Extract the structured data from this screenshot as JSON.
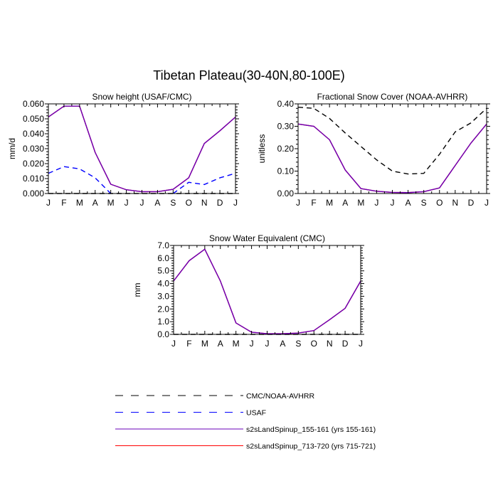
{
  "figure": {
    "title": "Tibetan Plateau(30-40N,80-100E)"
  },
  "legend": {
    "placement": "bottom-center",
    "entries": [
      {
        "label": "CMC/NOAA-AVHRR",
        "color": "#000000",
        "dash": "dashed"
      },
      {
        "label": "USAF",
        "color": "#0000ff",
        "dash": "dashed"
      },
      {
        "label": "s2sLandSpinup_155-161 (yrs 155-161)",
        "color": "#6a00b8",
        "dash": "solid"
      },
      {
        "label": "s2sLandSpinup_713-720 (yrs 715-721)",
        "color": "#ff0000",
        "dash": "solid"
      }
    ]
  },
  "chart_data": [
    {
      "id": "snow-height",
      "type": "line",
      "title": "Snow height (USAF/CMC)",
      "ylabel": "mm/d",
      "xlabel": "",
      "categories": [
        "J",
        "F",
        "M",
        "A",
        "M",
        "J",
        "J",
        "A",
        "S",
        "O",
        "N",
        "D",
        "J"
      ],
      "ylim": [
        0,
        0.06
      ],
      "yticks": [
        "0.000",
        "0.010",
        "0.020",
        "0.030",
        "0.040",
        "0.050",
        "0.060"
      ],
      "grid": false,
      "series": [
        {
          "name": "CMC/NOAA-AVHRR",
          "color": "#000000",
          "dash": "dashed",
          "values": [
            0.0,
            0.0,
            0.0,
            0.0,
            0.0,
            0.0,
            0.0,
            0.0,
            0.0,
            0.0,
            0.0,
            0.0,
            0.0
          ]
        },
        {
          "name": "USAF",
          "color": "#0000ff",
          "dash": "dashed",
          "values": [
            0.0135,
            0.018,
            0.0165,
            0.0105,
            0.0,
            null,
            null,
            null,
            0.0,
            0.0075,
            0.006,
            0.0105,
            0.0135
          ]
        },
        {
          "name": "s2sLandSpinup_713-720 (yrs 715-721)",
          "color": "#ff0000",
          "dash": "solid",
          "values": [
            0.0512,
            0.0585,
            0.0585,
            0.0275,
            0.0062,
            0.0025,
            0.0012,
            0.0012,
            0.0028,
            0.0105,
            0.0335,
            0.042,
            0.0512
          ]
        },
        {
          "name": "s2sLandSpinup_155-161 (yrs 155-161)",
          "color": "#6a00b8",
          "dash": "solid",
          "values": [
            0.0512,
            0.0585,
            0.0585,
            0.0275,
            0.0062,
            0.0025,
            0.0012,
            0.0012,
            0.0028,
            0.0105,
            0.0335,
            0.042,
            0.0512
          ]
        }
      ]
    },
    {
      "id": "fractional-snow-cover",
      "type": "line",
      "title": "Fractional Snow Cover (NOAA-AVHRR)",
      "ylabel": "unitless",
      "xlabel": "",
      "categories": [
        "J",
        "F",
        "M",
        "A",
        "M",
        "J",
        "J",
        "A",
        "S",
        "O",
        "N",
        "D",
        "J"
      ],
      "ylim": [
        0,
        0.4
      ],
      "yticks": [
        "0.00",
        "0.10",
        "0.20",
        "0.30",
        "0.40"
      ],
      "grid": false,
      "series": [
        {
          "name": "CMC/NOAA-AVHRR",
          "color": "#000000",
          "dash": "dashed",
          "values": [
            0.385,
            0.38,
            0.335,
            0.27,
            0.21,
            0.15,
            0.1,
            0.087,
            0.09,
            0.175,
            0.275,
            0.315,
            0.38
          ]
        },
        {
          "name": "s2sLandSpinup_713-720 (yrs 715-721)",
          "color": "#ff0000",
          "dash": "solid",
          "values": [
            0.31,
            0.3,
            0.24,
            0.105,
            0.022,
            0.01,
            0.005,
            0.004,
            0.008,
            0.025,
            0.125,
            0.225,
            0.31
          ]
        },
        {
          "name": "s2sLandSpinup_155-161 (yrs 155-161)",
          "color": "#6a00b8",
          "dash": "solid",
          "values": [
            0.31,
            0.3,
            0.24,
            0.105,
            0.022,
            0.01,
            0.005,
            0.004,
            0.008,
            0.025,
            0.125,
            0.225,
            0.31
          ]
        }
      ]
    },
    {
      "id": "snow-water-equivalent",
      "type": "line",
      "title": "Snow Water Equivalent (CMC)",
      "ylabel": "mm",
      "xlabel": "",
      "categories": [
        "J",
        "F",
        "M",
        "A",
        "M",
        "J",
        "J",
        "A",
        "S",
        "O",
        "N",
        "D",
        "J"
      ],
      "ylim": [
        0,
        7
      ],
      "yticks": [
        "0.0",
        "1.0",
        "2.0",
        "3.0",
        "4.0",
        "5.0",
        "6.0",
        "7.0"
      ],
      "grid": false,
      "series": [
        {
          "name": "CMC/NOAA-AVHRR",
          "color": "#000000",
          "dash": "dashed",
          "values": [
            0.0,
            0.0,
            0.0,
            0.0,
            0.0,
            0.0,
            0.0,
            0.0,
            0.0,
            0.0,
            0.0,
            0.0,
            0.0
          ]
        },
        {
          "name": "s2sLandSpinup_713-720 (yrs 715-721)",
          "color": "#ff0000",
          "dash": "solid",
          "values": [
            4.2,
            5.8,
            6.7,
            4.2,
            0.9,
            0.17,
            0.05,
            0.05,
            0.1,
            0.3,
            1.15,
            2.05,
            4.2
          ]
        },
        {
          "name": "s2sLandSpinup_155-161 (yrs 155-161)",
          "color": "#6a00b8",
          "dash": "solid",
          "values": [
            4.2,
            5.8,
            6.7,
            4.2,
            0.9,
            0.17,
            0.05,
            0.05,
            0.1,
            0.3,
            1.15,
            2.05,
            4.2
          ]
        }
      ]
    }
  ]
}
